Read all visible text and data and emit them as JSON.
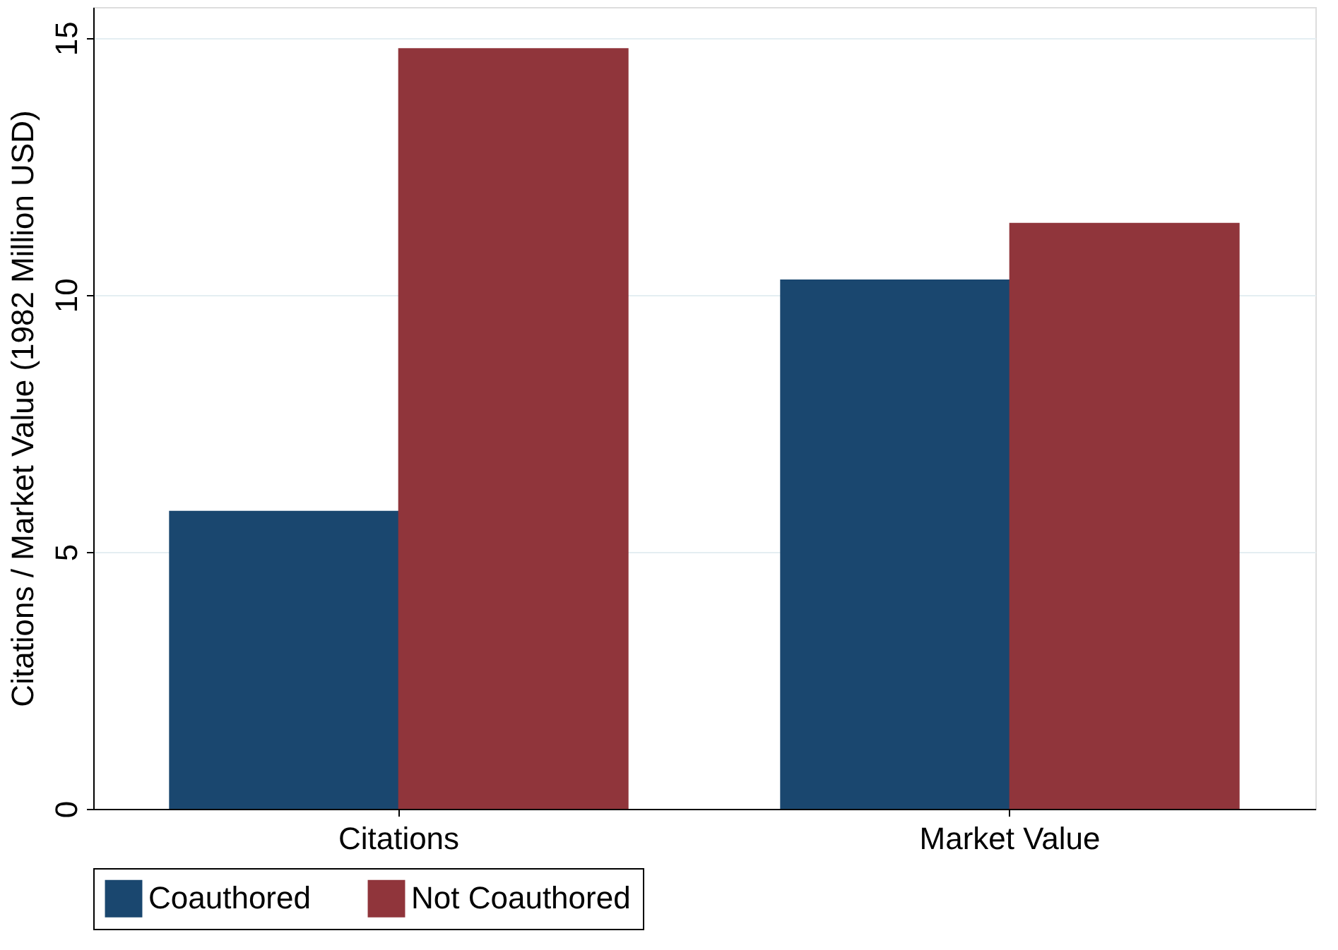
{
  "chart_data": {
    "type": "bar",
    "ylabel": "Citations / Market Value (1982 Million USD)",
    "categories": [
      "Citations",
      "Market Value"
    ],
    "series": [
      {
        "name": "Coauthored",
        "color": "#1a476f",
        "values": [
          5.8,
          10.3
        ]
      },
      {
        "name": "Not Coauthored",
        "color": "#90353b",
        "values": [
          14.8,
          11.4
        ]
      }
    ],
    "ylim": [
      0,
      15.6
    ],
    "yticks": [
      0,
      5,
      10,
      15
    ],
    "grid": "y",
    "legend": "bottom"
  }
}
